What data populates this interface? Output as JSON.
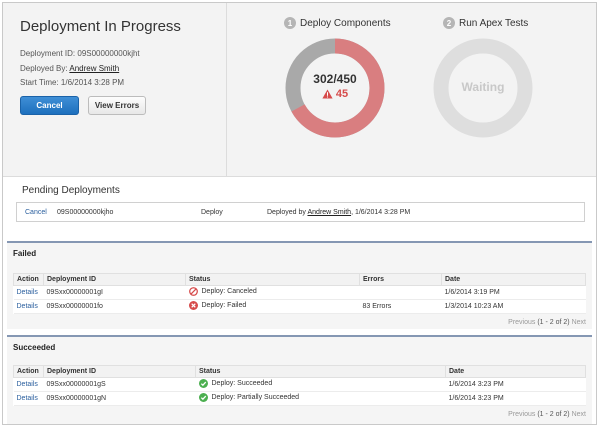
{
  "header": {
    "title": "Deployment In Progress",
    "deployment_id_label": "Deployment ID:",
    "deployment_id": "09S00000000kjht",
    "deployed_by_label": "Deployed By:",
    "deployed_by": "Andrew Smith",
    "start_time_label": "Start Time:",
    "start_time": "1/6/2014 3:28 PM",
    "cancel_label": "Cancel",
    "view_errors_label": "View Errors"
  },
  "steps": [
    {
      "number": "1",
      "label": "Deploy Components",
      "count": "302/450",
      "errors": "45",
      "progress": 0.67,
      "color_done": "#a9a9a9",
      "color_error": "#d97e80"
    },
    {
      "number": "2",
      "label": "Run Apex Tests",
      "status": "Waiting",
      "color": "#dedede"
    }
  ],
  "pending": {
    "title": "Pending Deployments",
    "row": {
      "action": "Cancel",
      "id": "09S00000000kjho",
      "type": "Deploy",
      "deployed_by_prefix": "Deployed by",
      "deployed_by": "Andrew Smith",
      "date": ", 1/6/2014 3:28 PM"
    }
  },
  "failed": {
    "title": "Failed",
    "columns": [
      "Action",
      "Deployment ID",
      "Status",
      "Errors",
      "Date"
    ],
    "rows": [
      {
        "action": "Details",
        "id": "09Sxx00000001gI",
        "status": "Deploy: Canceled",
        "status_icon": "cancel-icon",
        "errors": "",
        "date": "1/6/2014 3:19 PM"
      },
      {
        "action": "Details",
        "id": "09Sxx00000001fo",
        "status": "Deploy: Failed",
        "status_icon": "error-icon",
        "errors": "83 Errors",
        "date": "1/3/2014 10:23 AM"
      }
    ],
    "pager": {
      "prev": "Previous",
      "count": "(1 - 2 of 2)",
      "next": "Next"
    }
  },
  "succeeded": {
    "title": "Succeeded",
    "columns": [
      "Action",
      "Deployment ID",
      "Status",
      "Date"
    ],
    "rows": [
      {
        "action": "Details",
        "id": "09Sxx00000001gS",
        "status": "Deploy: Succeeded",
        "status_icon": "check-icon",
        "date": "1/6/2014 3:23 PM"
      },
      {
        "action": "Details",
        "id": "09Sxx00000001gN",
        "status": "Deploy: Partially Succeeded",
        "status_icon": "check-icon",
        "date": "1/6/2014 3:23 PM"
      }
    ],
    "pager": {
      "prev": "Previous",
      "count": "(1 - 2 of 2)",
      "next": "Next"
    }
  },
  "colors": {
    "primary_button": "#1d6fbd",
    "link": "#2a5f9e",
    "error": "#d64b4b",
    "success": "#4caf50",
    "panel_rule": "#8597b3"
  }
}
